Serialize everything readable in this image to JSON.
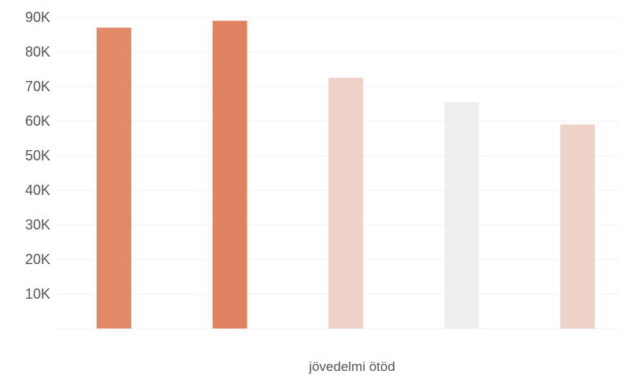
{
  "chart_data": {
    "type": "bar",
    "title": "",
    "xlabel": "jövedelmi ötöd",
    "ylabel": "",
    "categories": [
      "",
      "",
      "",
      "",
      ""
    ],
    "values": [
      87000,
      89000,
      72500,
      65500,
      59000
    ],
    "bar_colors": [
      "#e08a6a",
      "#e08262",
      "#efd2c8",
      "#efefef",
      "#efd2c8"
    ],
    "ylim": [
      0,
      90000
    ],
    "yticks": [
      10000,
      20000,
      30000,
      40000,
      50000,
      60000,
      70000,
      80000,
      90000
    ],
    "ytick_labels": [
      "10K",
      "20K",
      "30K",
      "40K",
      "50K",
      "60K",
      "70K",
      "80K",
      "90K"
    ],
    "grid": true,
    "legend": "none"
  },
  "colors": {
    "grid": "#f2f2f2",
    "axis_text": "#555555"
  }
}
